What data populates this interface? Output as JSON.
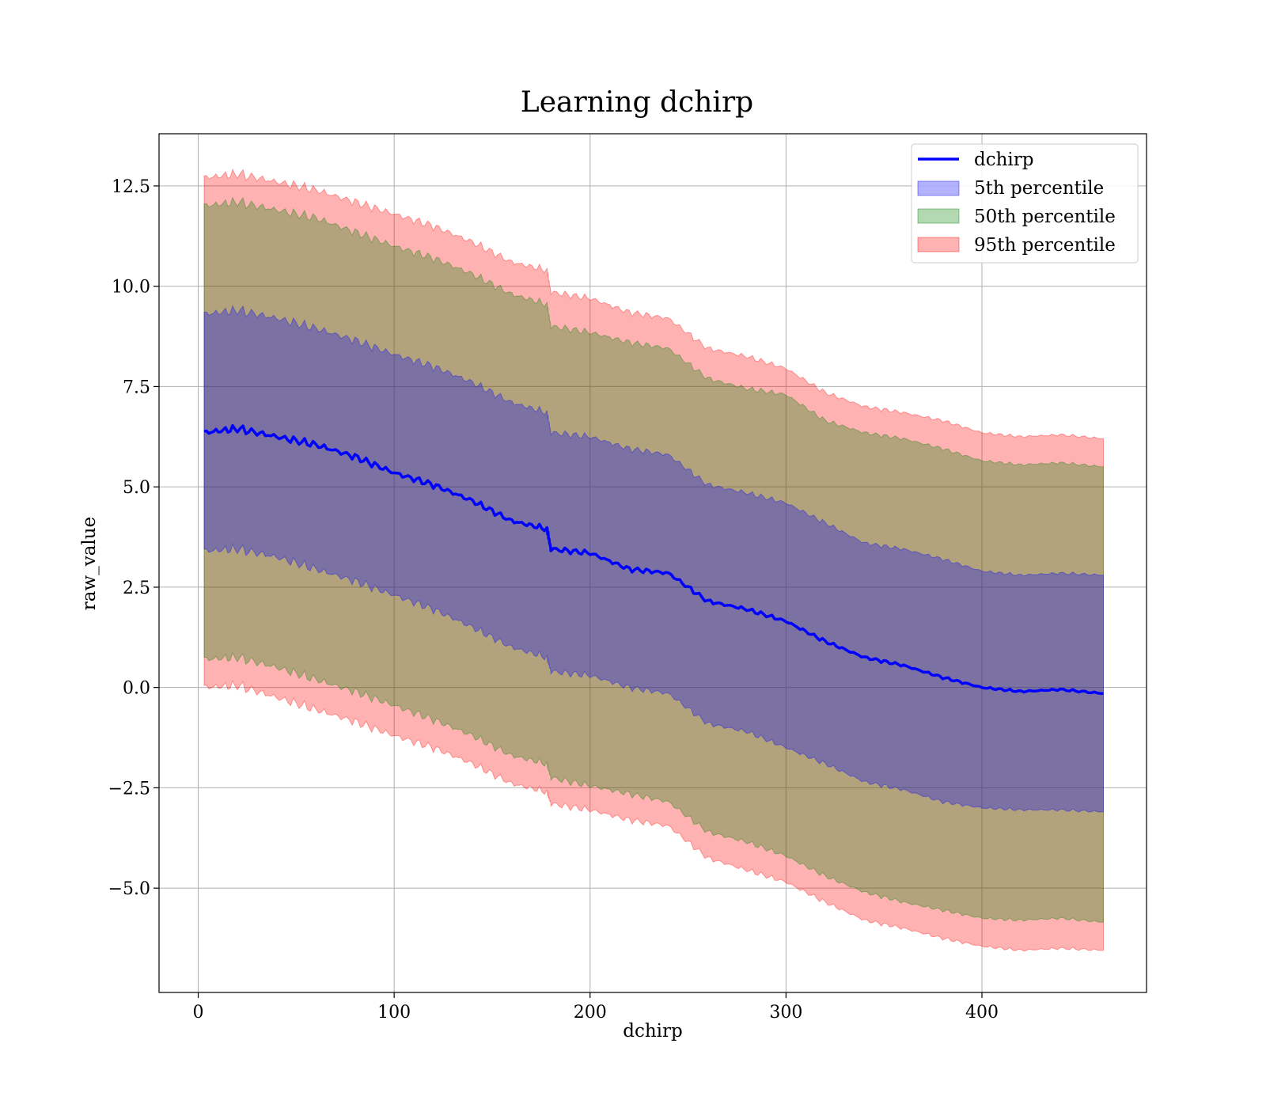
{
  "chart_data": {
    "type": "line",
    "title": "Learning dchirp",
    "xlabel": "dchirp",
    "ylabel": "raw_value",
    "xlim": [
      -20,
      484
    ],
    "ylim": [
      -7.6,
      13.8
    ],
    "grid": true,
    "legend_position": "top-right",
    "x_ticks": [
      0,
      100,
      200,
      300,
      400
    ],
    "x_tick_labels": [
      "0",
      "100",
      "200",
      "300",
      "400"
    ],
    "y_ticks": [
      -5,
      -2.5,
      0,
      2.5,
      5,
      7.5,
      10,
      12.5
    ],
    "y_tick_labels": [
      "−5.0",
      "−2.5",
      "0.0",
      "2.5",
      "5.0",
      "7.5",
      "10.0",
      "12.5"
    ],
    "x": [
      3,
      20,
      40,
      60,
      80,
      100,
      120,
      140,
      160,
      178,
      180,
      200,
      220,
      240,
      260,
      280,
      300,
      320,
      340,
      360,
      380,
      400,
      420,
      440,
      462
    ],
    "line": {
      "name": "dchirp",
      "color": "#0000ff",
      "values": [
        6.35,
        6.45,
        6.25,
        6.05,
        5.75,
        5.35,
        5.05,
        4.65,
        4.15,
        3.95,
        3.45,
        3.35,
        2.95,
        2.85,
        2.15,
        1.95,
        1.65,
        1.15,
        0.75,
        0.55,
        0.25,
        0.0,
        -0.1,
        -0.05,
        -0.15
      ]
    },
    "bands": [
      {
        "name": "95th percentile",
        "color": "#ff0000",
        "opacity": 0.3,
        "lower": [
          0.0,
          0.05,
          -0.25,
          -0.55,
          -0.85,
          -1.2,
          -1.5,
          -1.9,
          -2.4,
          -2.6,
          -2.9,
          -3.05,
          -3.3,
          -3.45,
          -4.25,
          -4.55,
          -4.85,
          -5.35,
          -5.8,
          -6.0,
          -6.25,
          -6.45,
          -6.55,
          -6.5,
          -6.55
        ],
        "upper": [
          12.7,
          12.8,
          12.6,
          12.4,
          12.1,
          11.8,
          11.5,
          11.1,
          10.6,
          10.4,
          9.85,
          9.7,
          9.35,
          9.2,
          8.45,
          8.25,
          7.95,
          7.35,
          7.0,
          6.85,
          6.65,
          6.35,
          6.25,
          6.3,
          6.2
        ]
      },
      {
        "name": "50th percentile",
        "color": "#008000",
        "opacity": 0.3,
        "lower": [
          0.7,
          0.75,
          0.5,
          0.2,
          -0.1,
          -0.45,
          -0.8,
          -1.2,
          -1.7,
          -1.9,
          -2.25,
          -2.45,
          -2.65,
          -2.85,
          -3.6,
          -3.85,
          -4.2,
          -4.7,
          -5.1,
          -5.35,
          -5.55,
          -5.75,
          -5.8,
          -5.75,
          -5.85
        ],
        "upper": [
          12.0,
          12.1,
          11.9,
          11.7,
          11.35,
          11.0,
          10.7,
          10.3,
          9.8,
          9.55,
          9.0,
          8.85,
          8.6,
          8.45,
          7.7,
          7.45,
          7.3,
          6.65,
          6.35,
          6.2,
          5.95,
          5.65,
          5.55,
          5.6,
          5.5
        ]
      },
      {
        "name": "5th percentile",
        "color": "#0000ff",
        "opacity": 0.3,
        "lower": [
          3.4,
          3.45,
          3.25,
          2.95,
          2.65,
          2.3,
          1.95,
          1.5,
          1.0,
          0.75,
          0.4,
          0.3,
          0.0,
          -0.15,
          -0.9,
          -1.1,
          -1.5,
          -1.9,
          -2.35,
          -2.55,
          -2.85,
          -3.0,
          -3.05,
          -3.05,
          -3.1
        ],
        "upper": [
          9.3,
          9.4,
          9.2,
          8.95,
          8.65,
          8.3,
          8.0,
          7.6,
          7.1,
          6.85,
          6.35,
          6.25,
          5.95,
          5.8,
          5.05,
          4.85,
          4.6,
          4.1,
          3.6,
          3.45,
          3.2,
          2.9,
          2.8,
          2.85,
          2.8
        ]
      }
    ],
    "legend": [
      "dchirp",
      "5th percentile",
      "50th percentile",
      "95th percentile"
    ]
  }
}
